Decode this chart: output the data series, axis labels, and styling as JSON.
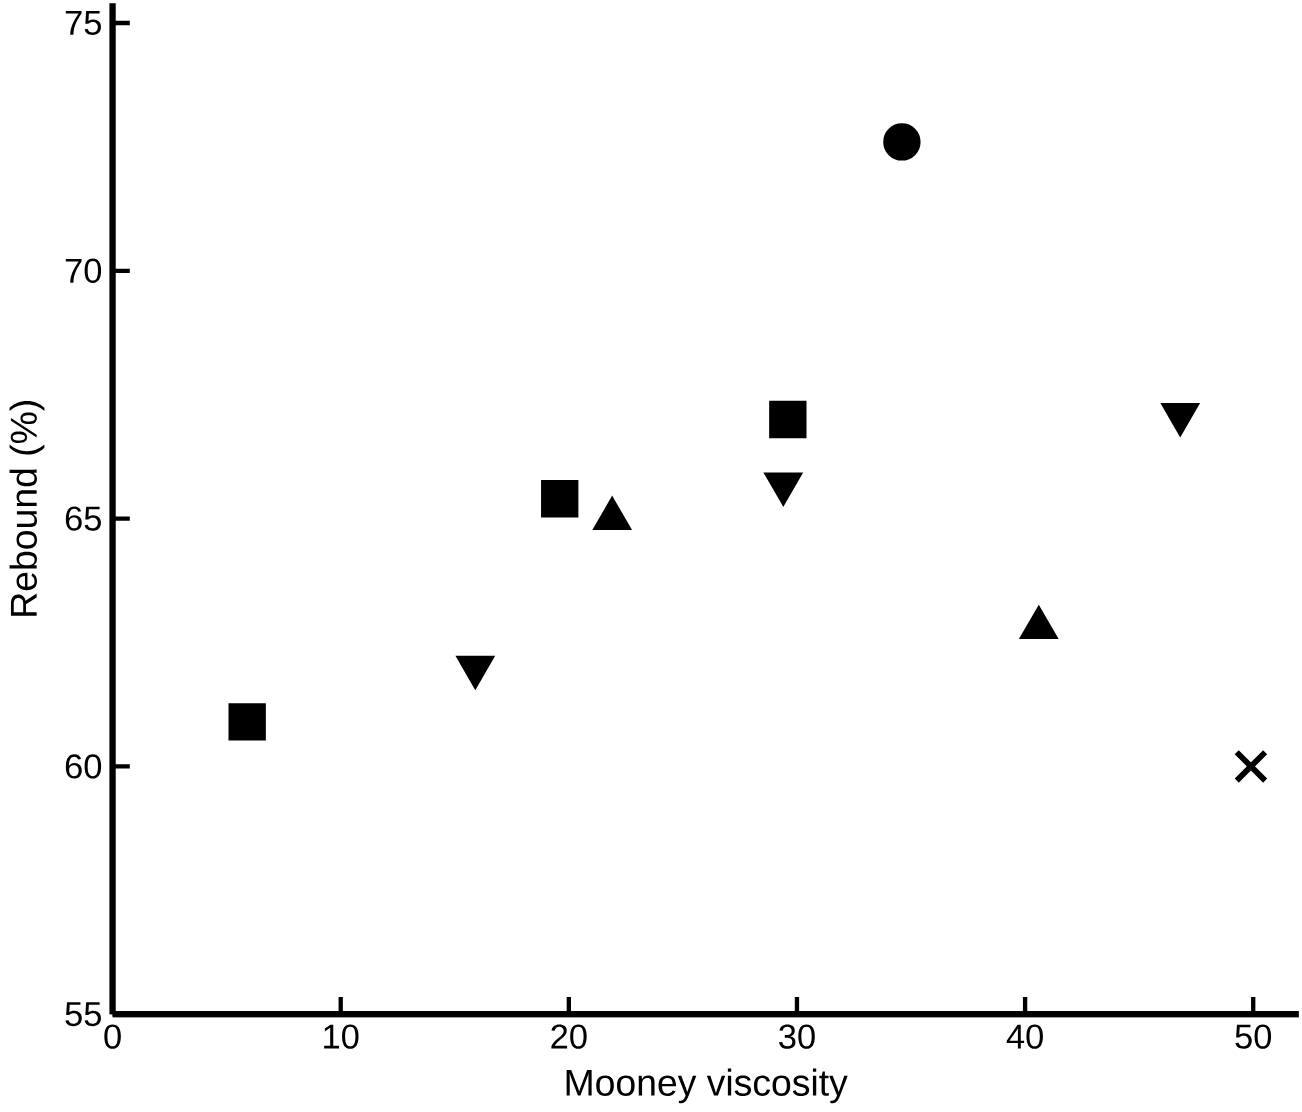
{
  "chart_data": {
    "type": "scatter",
    "xlabel": "Mooney viscosity",
    "ylabel": "Rebound (%)",
    "xlim": [
      0,
      52
    ],
    "ylim": [
      55,
      75.4
    ],
    "xticks": [
      0,
      10,
      20,
      30,
      40,
      50
    ],
    "yticks": [
      55,
      60,
      65,
      70,
      75
    ],
    "grid": false,
    "series": [
      {
        "marker": "square",
        "color": "#000000",
        "x": [
          5.9
        ],
        "values": [
          60.9
        ]
      },
      {
        "marker": "triangle down",
        "color": "#000000",
        "x": [
          15.9
        ],
        "values": [
          62.0
        ]
      },
      {
        "marker": "square",
        "color": "#000000",
        "x": [
          19.6,
          29.6
        ],
        "values": [
          65.4,
          67.0
        ]
      },
      {
        "marker": "triangle",
        "color": "#000000",
        "x": [
          21.9,
          40.6
        ],
        "values": [
          65.0,
          62.8
        ]
      },
      {
        "marker": "triangle down",
        "color": "#000000",
        "x": [
          29.4,
          46.8
        ],
        "values": [
          65.7,
          67.1
        ]
      },
      {
        "marker": "circle",
        "color": "#000000",
        "x": [
          34.6
        ],
        "values": [
          72.6
        ]
      },
      {
        "marker": "cross",
        "color": "#000000",
        "x": [
          49.9
        ],
        "values": [
          60.0
        ]
      }
    ]
  }
}
